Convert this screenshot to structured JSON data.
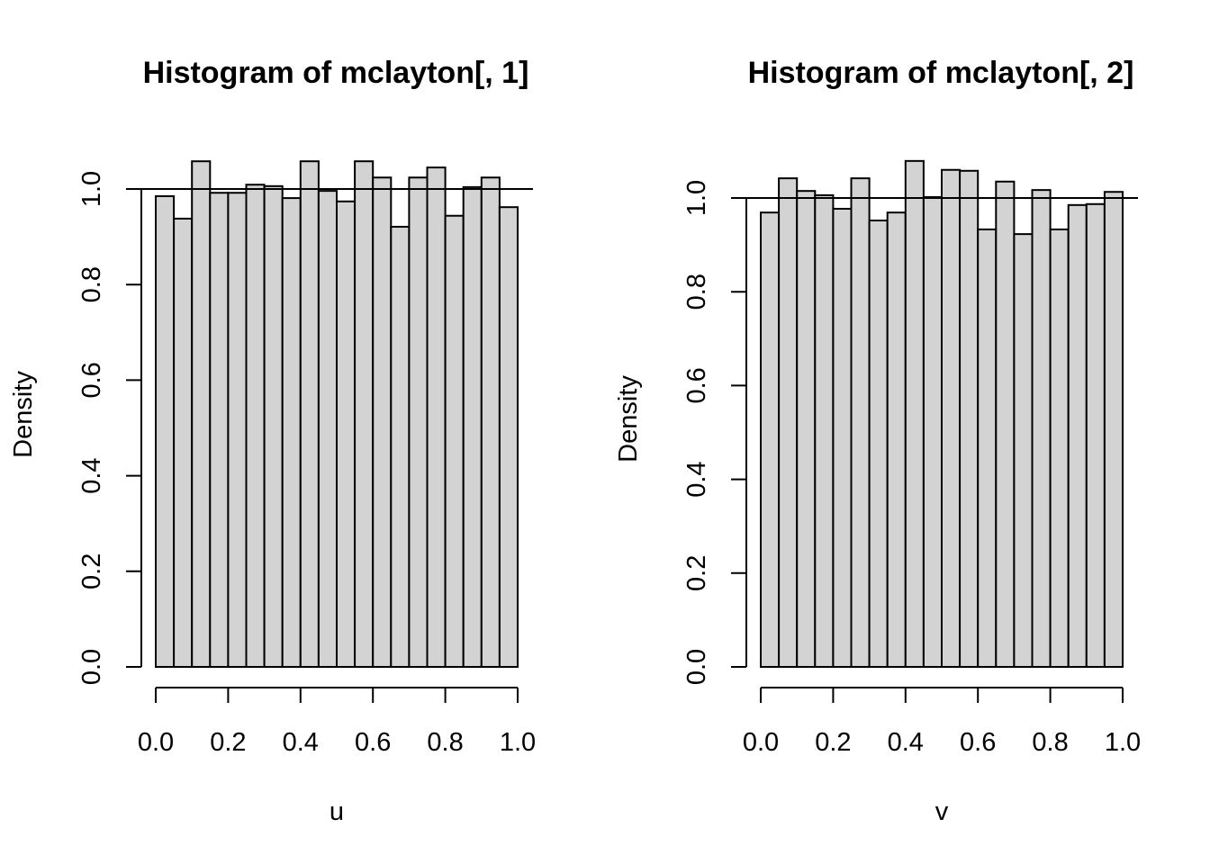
{
  "chart_data": [
    {
      "type": "bar",
      "title": "Histogram of mclayton[, 1]",
      "xlabel": "u",
      "ylabel": "Density",
      "bin_edges": [
        0.0,
        0.05,
        0.1,
        0.15,
        0.2,
        0.25,
        0.3,
        0.35,
        0.4,
        0.45,
        0.5,
        0.55,
        0.6,
        0.65,
        0.7,
        0.75,
        0.8,
        0.85,
        0.9,
        0.95,
        1.0
      ],
      "values": [
        0.985,
        0.938,
        1.058,
        0.992,
        0.992,
        1.009,
        1.006,
        0.981,
        1.058,
        0.996,
        0.974,
        1.058,
        1.024,
        0.921,
        1.024,
        1.045,
        0.944,
        1.004,
        1.024,
        0.962
      ],
      "hline": 1.0,
      "xlim": [
        0,
        1
      ],
      "ylim": [
        0,
        1.06
      ],
      "xticks": [
        "0.0",
        "0.2",
        "0.4",
        "0.6",
        "0.8",
        "1.0"
      ],
      "yticks": [
        "0.0",
        "0.2",
        "0.4",
        "0.6",
        "0.8",
        "1.0"
      ],
      "bar_color": "#d3d3d3"
    },
    {
      "type": "bar",
      "title": "Histogram of mclayton[, 2]",
      "xlabel": "v",
      "ylabel": "Density",
      "bin_edges": [
        0.0,
        0.05,
        0.1,
        0.15,
        0.2,
        0.25,
        0.3,
        0.35,
        0.4,
        0.45,
        0.5,
        0.55,
        0.6,
        0.65,
        0.7,
        0.75,
        0.8,
        0.85,
        0.9,
        0.95,
        1.0
      ],
      "values": [
        0.969,
        1.042,
        1.015,
        1.006,
        0.977,
        1.042,
        0.952,
        0.969,
        1.079,
        1.002,
        1.06,
        1.058,
        0.933,
        1.035,
        0.923,
        1.017,
        0.933,
        0.985,
        0.987,
        1.013
      ],
      "hline": 1.0,
      "xlim": [
        0,
        1
      ],
      "ylim": [
        0,
        1.08
      ],
      "xticks": [
        "0.0",
        "0.2",
        "0.4",
        "0.6",
        "0.8",
        "1.0"
      ],
      "yticks": [
        "0.0",
        "0.2",
        "0.4",
        "0.6",
        "0.8",
        "1.0"
      ],
      "bar_color": "#d3d3d3"
    }
  ]
}
